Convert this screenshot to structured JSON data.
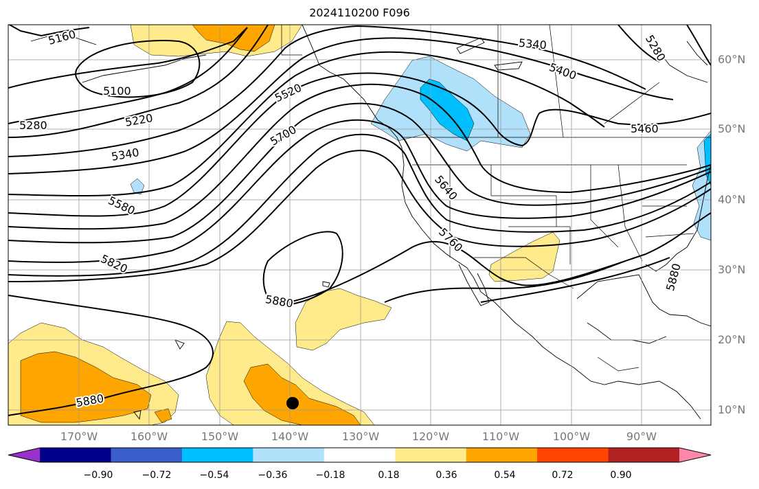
{
  "title": "2024110200 F096",
  "lat_labels": [
    "60°N",
    "50°N",
    "40°N",
    "30°N",
    "20°N",
    "10°N"
  ],
  "lon_labels": [
    "170°W",
    "160°W",
    "150°W",
    "140°W",
    "130°W",
    "120°W",
    "110°W",
    "100°W",
    "90°W"
  ],
  "contour_labels": [
    "5160",
    "5100",
    "5280",
    "5220",
    "5340",
    "5580",
    "5820",
    "5520",
    "5700",
    "5880",
    "5640",
    "5760",
    "5340",
    "5400",
    "5280",
    "5460",
    "5880",
    "5880"
  ],
  "colorbar": {
    "tick_labels": [
      "−0.90",
      "−0.72",
      "−0.54",
      "−0.36",
      "−0.18",
      "0.18",
      "0.36",
      "0.54",
      "0.72",
      "0.90"
    ],
    "colors": [
      "#9932cc",
      "#00008b",
      "#3a5fcd",
      "#00bfff",
      "#b0e0fa",
      "#ffffff",
      "#ffeb8c",
      "#ffa500",
      "#ff4500",
      "#b22222",
      "#ff88aa"
    ]
  },
  "shading_colors": {
    "pos_light": "#ffeb8c",
    "pos_mid": "#ffa500",
    "neg_light": "#b0e0fa",
    "neg_mid": "#00bfff"
  }
}
